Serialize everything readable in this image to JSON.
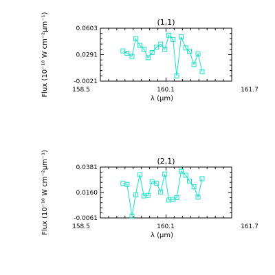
{
  "colors": {
    "series": "#14e0c8",
    "axes": "#000000",
    "background": "#ffffff"
  },
  "chart_data": [
    {
      "type": "line",
      "title": "(1,1)",
      "xlabel": "λ (μm)",
      "ylabel": "Flux (10⁻¹⁸ W cm⁻²μm⁻¹)",
      "xlim": [
        158.5,
        161.7
      ],
      "ylim": [
        -0.0021,
        0.0603
      ],
      "xticks": [
        "158.5",
        "160.1",
        "161.7"
      ],
      "yticks": [
        "-0.0021",
        "0.0291",
        "0.0603"
      ],
      "marker": "square",
      "x": [
        159.05,
        159.15,
        159.27,
        159.36,
        159.46,
        159.56,
        159.66,
        159.76,
        159.87,
        159.97,
        160.07,
        160.17,
        160.27,
        160.36,
        160.47,
        160.58,
        160.67,
        160.78,
        160.88,
        160.98
      ],
      "y": [
        0.0335,
        0.0308,
        0.027,
        0.048,
        0.04,
        0.0355,
        0.0255,
        0.0315,
        0.038,
        0.0415,
        0.0355,
        0.052,
        0.047,
        0.004,
        0.05,
        0.037,
        0.033,
        0.0175,
        0.03,
        0.009
      ]
    },
    {
      "type": "line",
      "title": "(2,1)",
      "xlabel": "λ (μm)",
      "ylabel": "Flux (10⁻¹⁸ W cm⁻²μm⁻¹)",
      "xlim": [
        158.5,
        161.7
      ],
      "ylim": [
        -0.0061,
        0.0381
      ],
      "xticks": [
        "158.5",
        "160.1",
        "161.7"
      ],
      "yticks": [
        "-0.0061",
        "0.0160",
        "0.0381"
      ],
      "marker": "square",
      "x": [
        159.05,
        159.15,
        159.27,
        159.36,
        159.46,
        159.56,
        159.66,
        159.76,
        159.87,
        159.97,
        160.07,
        160.17,
        160.27,
        160.36,
        160.47,
        160.58,
        160.67,
        160.78,
        160.88,
        160.98
      ],
      "y": [
        0.024,
        0.023,
        -0.0045,
        0.014,
        0.0315,
        0.013,
        0.0135,
        0.0255,
        0.024,
        0.0165,
        0.032,
        0.0095,
        0.01,
        0.0115,
        0.0345,
        0.031,
        0.026,
        0.021,
        0.012,
        0.028
      ]
    }
  ]
}
